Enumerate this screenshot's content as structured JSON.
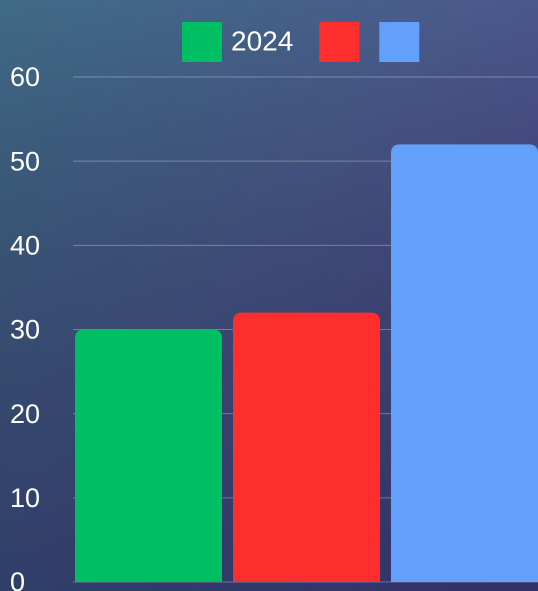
{
  "chart_data": {
    "type": "bar",
    "categories": [
      null
    ],
    "series": [
      {
        "name": "2024",
        "color": "#00bf63",
        "values": [
          30
        ]
      },
      {
        "name": null,
        "color": "#ff2e2e",
        "values": [
          32
        ]
      },
      {
        "name": null,
        "color": "#62a0fb",
        "values": [
          52
        ]
      }
    ],
    "ylim": [
      0,
      60
    ],
    "yticks": [
      0,
      10,
      20,
      30,
      40,
      50,
      60
    ],
    "grid": true,
    "legend": "top"
  }
}
